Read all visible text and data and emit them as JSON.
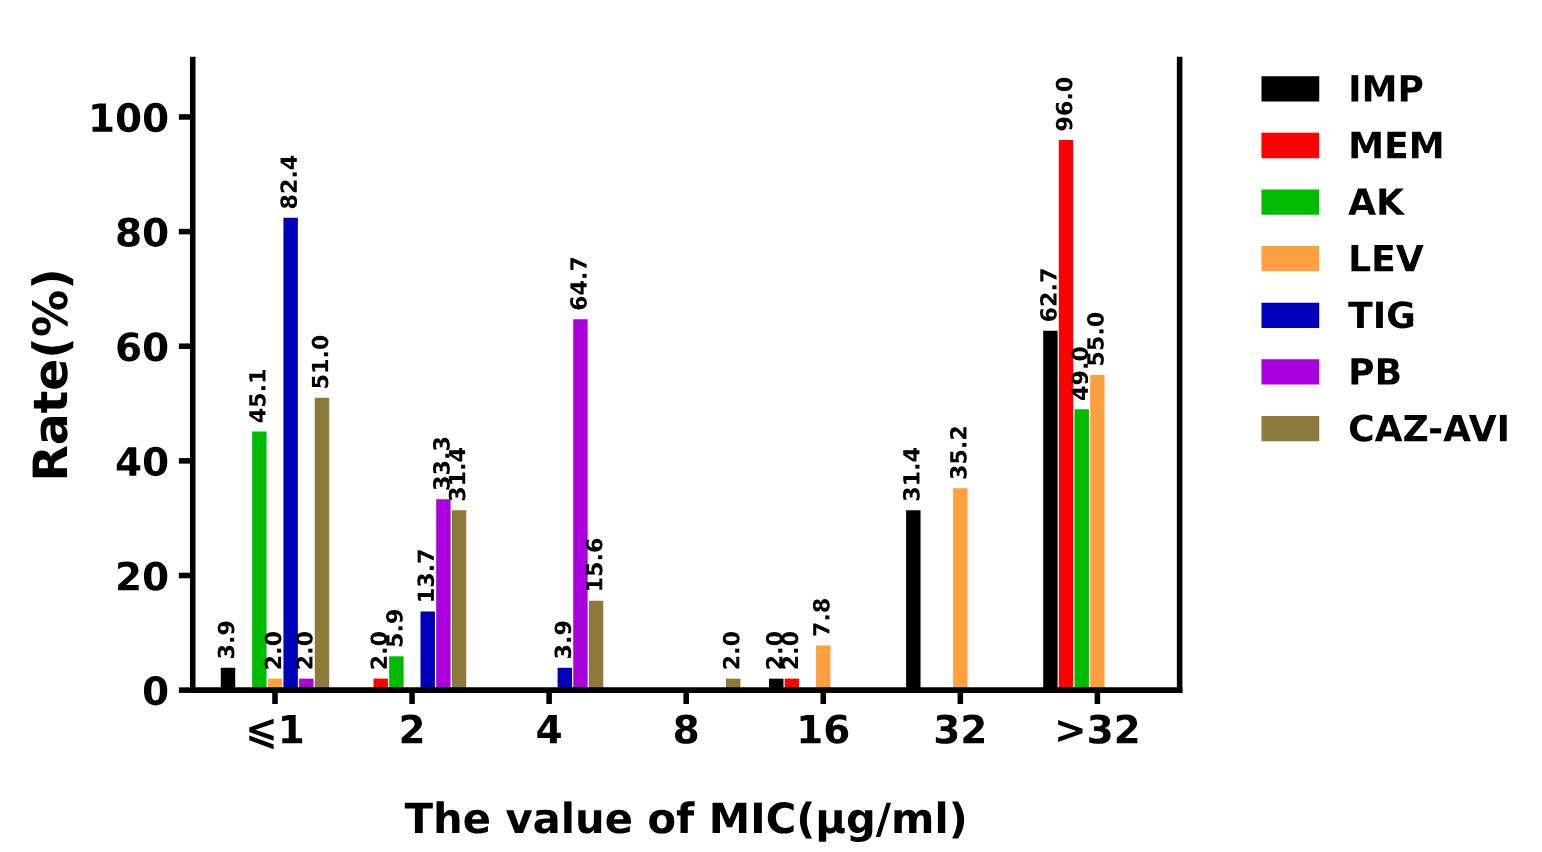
{
  "chart_data": {
    "type": "bar",
    "xlabel": "The value of MIC(μg/ml)",
    "ylabel": "Rate(%)",
    "categories": [
      "⩽1",
      "2",
      "4",
      "8",
      "16",
      "32",
      ">32"
    ],
    "series": [
      {
        "name": "IMP",
        "color": "#000000",
        "values": [
          3.9,
          null,
          null,
          null,
          2.0,
          31.4,
          62.7
        ],
        "value_labels": [
          "3.9",
          null,
          null,
          null,
          "2.0",
          "31.4",
          "62.7"
        ]
      },
      {
        "name": "MEM",
        "color": "#ff0000",
        "values": [
          null,
          2.0,
          null,
          null,
          2.0,
          null,
          96.0
        ],
        "value_labels": [
          null,
          "2.0",
          null,
          null,
          "2.0",
          null,
          "96.0"
        ]
      },
      {
        "name": "AK",
        "color": "#00bb00",
        "values": [
          45.1,
          5.9,
          null,
          null,
          null,
          null,
          49.0
        ],
        "value_labels": [
          "45.1",
          "5.9",
          null,
          null,
          null,
          null,
          "49.0"
        ]
      },
      {
        "name": "LEV",
        "color": "#ffa040",
        "values": [
          2.0,
          null,
          null,
          null,
          7.8,
          35.2,
          55.0
        ],
        "value_labels": [
          "2.0",
          null,
          null,
          null,
          "7.8",
          "35.2",
          "55.0"
        ]
      },
      {
        "name": "TIG",
        "color": "#0000bb",
        "values": [
          82.4,
          13.7,
          3.9,
          null,
          null,
          null,
          null
        ],
        "value_labels": [
          "82.4",
          "13.7",
          "3.9",
          null,
          null,
          null,
          null
        ]
      },
      {
        "name": "PB",
        "color": "#aa00dd",
        "values": [
          2.0,
          33.3,
          64.7,
          null,
          null,
          null,
          null
        ],
        "value_labels": [
          "2.0",
          "33.3",
          "64.7",
          null,
          null,
          null,
          null
        ]
      },
      {
        "name": "CAZ-AVI",
        "color": "#8b7a3a",
        "values": [
          51.0,
          31.4,
          15.6,
          2.0,
          null,
          null,
          null
        ],
        "value_labels": [
          "51.0",
          "31.4",
          "15.6",
          "2.0",
          null,
          null,
          null
        ]
      }
    ],
    "ylim": [
      0,
      110
    ],
    "yticks": [
      0,
      20,
      40,
      60,
      80,
      100
    ],
    "grid": false,
    "legend": "right"
  }
}
